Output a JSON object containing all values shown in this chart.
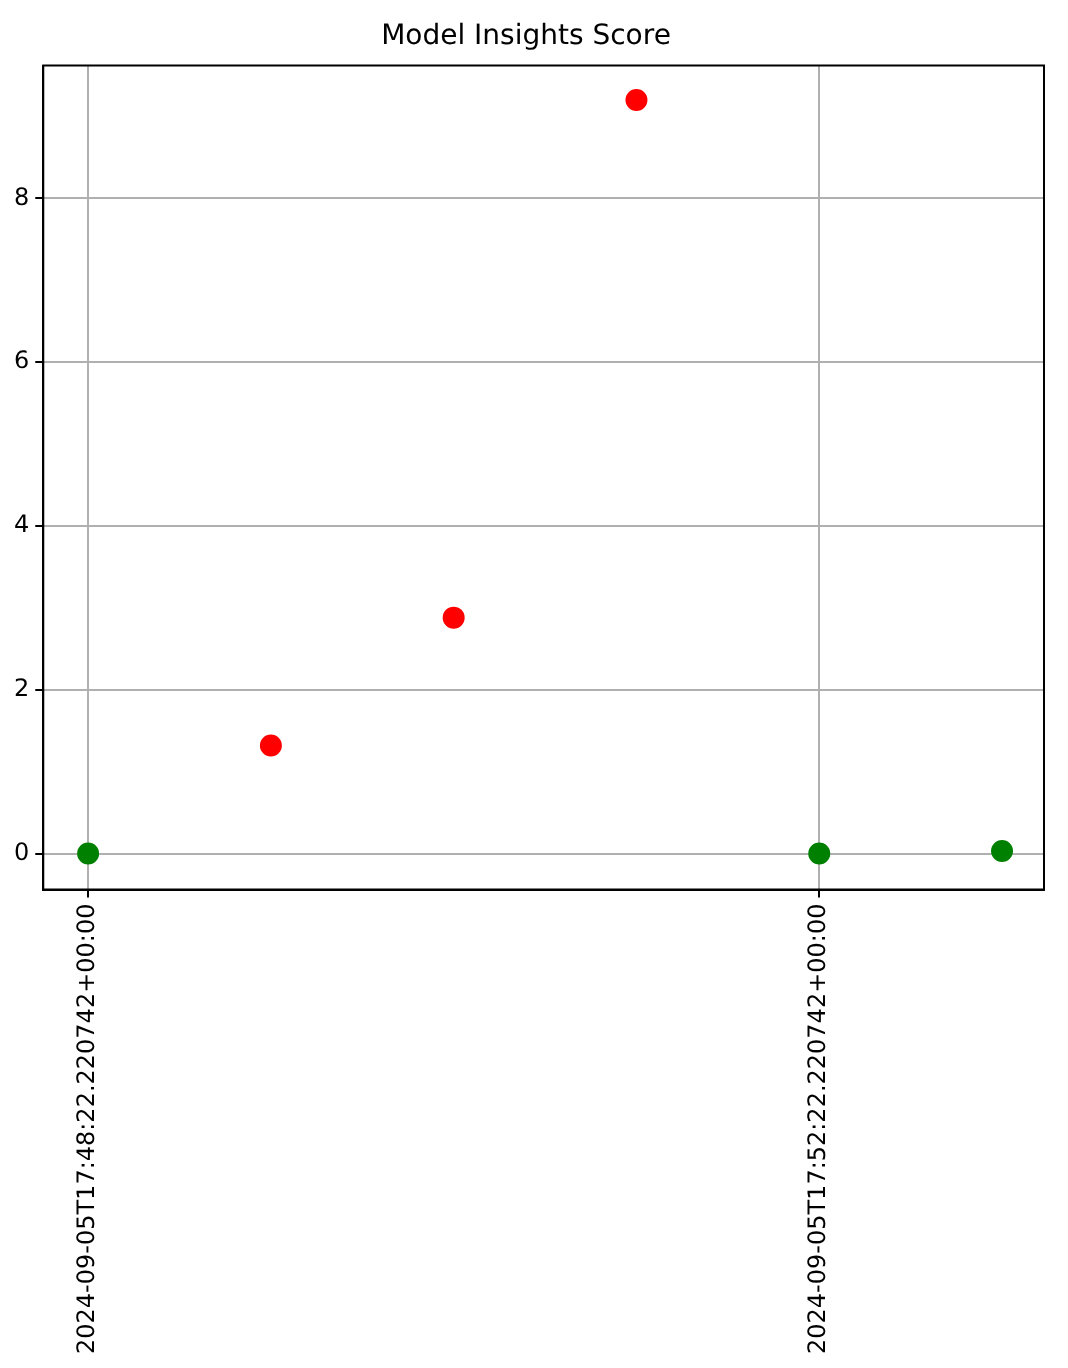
{
  "chart_data": {
    "type": "scatter",
    "title": "Model Insights Score",
    "x": [
      "2024-09-05T17:48:22.220742",
      "2024-09-05T17:49:22.220742",
      "2024-09-05T17:50:22.220742",
      "2024-09-05T17:51:22.220742",
      "2024-09-05T17:52:22.220742",
      "2024-09-05T17:53:22.220742"
    ],
    "values": [
      0,
      1.32,
      2.88,
      9.2,
      0,
      0.03
    ],
    "colors": [
      "#008000",
      "#ff0000",
      "#ff0000",
      "#ff0000",
      "#008000",
      "#008000"
    ],
    "xlim": [
      "2024-09-05T17:48:07.5",
      "2024-09-05T17:53:36"
    ],
    "xticks": [
      {
        "value": "2024-09-05T17:48:22.220742",
        "label": "2024-09-05T17:48:22.220742+00:00"
      },
      {
        "value": "2024-09-05T17:52:22.220742",
        "label": "2024-09-05T17:52:22.220742+00:00"
      }
    ],
    "ylim": [
      -0.44,
      9.62
    ],
    "yticks": [
      0,
      2,
      4,
      6,
      8
    ],
    "grid": true,
    "marker": "circle",
    "legend": false
  }
}
